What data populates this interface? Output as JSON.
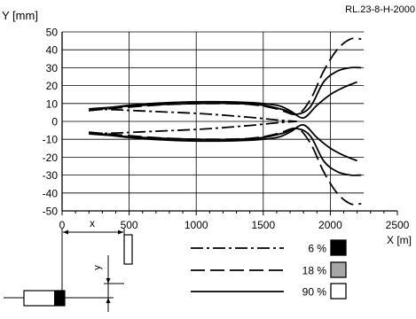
{
  "chart_data": {
    "type": "line",
    "code": "RL.23-8-H-2000",
    "ylabel": "Y [mm]",
    "xlabel": "X [m]",
    "xlim": [
      0,
      2500
    ],
    "ylim": [
      -50,
      50
    ],
    "grid": true,
    "x_ticks": [
      "0",
      "500",
      "1000",
      "1500",
      "2000",
      "2500"
    ],
    "y_ticks": [
      "50",
      "40",
      "30",
      "20",
      "10",
      "0",
      "-10",
      "-20",
      "-30",
      "-40",
      "-50"
    ],
    "legend_placement": "bottom-right",
    "series": [
      {
        "name": "6 %",
        "dash": "dash-dot",
        "swatch_color": "#000000",
        "upper": [
          [
            200,
            7
          ],
          [
            400,
            6.5
          ],
          [
            700,
            5.5
          ],
          [
            1000,
            4.5
          ],
          [
            1200,
            3.5
          ],
          [
            1400,
            2.3
          ],
          [
            1550,
            1.2
          ],
          [
            1650,
            0.5
          ],
          [
            1750,
            0
          ]
        ],
        "lower": [
          [
            200,
            -7
          ],
          [
            400,
            -6.5
          ],
          [
            700,
            -5.5
          ],
          [
            1000,
            -4.5
          ],
          [
            1200,
            -3.5
          ],
          [
            1400,
            -2.3
          ],
          [
            1550,
            -1.2
          ],
          [
            1650,
            -0.5
          ],
          [
            1750,
            0
          ]
        ]
      },
      {
        "name": "18 %",
        "dash": "long-dash",
        "swatch_color": "#a6a6a6",
        "upper": [
          [
            200,
            6
          ],
          [
            500,
            8
          ],
          [
            800,
            9.5
          ],
          [
            1100,
            10
          ],
          [
            1400,
            9.5
          ],
          [
            1600,
            7
          ],
          [
            1750,
            4
          ],
          [
            1850,
            12
          ],
          [
            1950,
            28
          ],
          [
            2050,
            40
          ],
          [
            2150,
            46
          ],
          [
            2230,
            46
          ]
        ],
        "lower": [
          [
            200,
            -6
          ],
          [
            500,
            -8
          ],
          [
            800,
            -9.5
          ],
          [
            1100,
            -10
          ],
          [
            1400,
            -9.5
          ],
          [
            1600,
            -7
          ],
          [
            1750,
            -4
          ],
          [
            1850,
            -12
          ],
          [
            1950,
            -28
          ],
          [
            2050,
            -40
          ],
          [
            2150,
            -46
          ],
          [
            2230,
            -46
          ]
        ]
      },
      {
        "name": "90 %",
        "dash": "solid",
        "swatch_color": "#ffffff",
        "upper": [
          [
            200,
            6
          ],
          [
            500,
            9
          ],
          [
            800,
            10.5
          ],
          [
            1100,
            11
          ],
          [
            1400,
            10.5
          ],
          [
            1600,
            9
          ],
          [
            1700,
            6
          ],
          [
            1800,
            2
          ],
          [
            1900,
            9
          ],
          [
            2000,
            15
          ],
          [
            2100,
            19
          ],
          [
            2200,
            22
          ]
        ],
        "lower": [
          [
            200,
            -6
          ],
          [
            500,
            -9
          ],
          [
            800,
            -10.5
          ],
          [
            1100,
            -11
          ],
          [
            1400,
            -10.5
          ],
          [
            1600,
            -9
          ],
          [
            1700,
            -6
          ],
          [
            1800,
            -2
          ],
          [
            1900,
            -9
          ],
          [
            2000,
            -15
          ],
          [
            2100,
            -19
          ],
          [
            2200,
            -22
          ]
        ],
        "outer_upper": [
          [
            200,
            7
          ],
          [
            600,
            9
          ],
          [
            1000,
            10
          ],
          [
            1300,
            10
          ],
          [
            1500,
            9
          ],
          [
            1650,
            6.5
          ],
          [
            1750,
            4
          ],
          [
            1850,
            8
          ],
          [
            1950,
            22
          ],
          [
            2050,
            28
          ],
          [
            2150,
            30
          ],
          [
            2230,
            30
          ]
        ],
        "outer_lower": [
          [
            200,
            -7
          ],
          [
            600,
            -9
          ],
          [
            1000,
            -10
          ],
          [
            1300,
            -10
          ],
          [
            1500,
            -9
          ],
          [
            1650,
            -6.5
          ],
          [
            1750,
            -4
          ],
          [
            1850,
            -8
          ],
          [
            1950,
            -22
          ],
          [
            2050,
            -28
          ],
          [
            2150,
            -30
          ],
          [
            2230,
            -30
          ]
        ]
      }
    ]
  },
  "diagram": {
    "x_label": "x",
    "y_label": "y"
  }
}
